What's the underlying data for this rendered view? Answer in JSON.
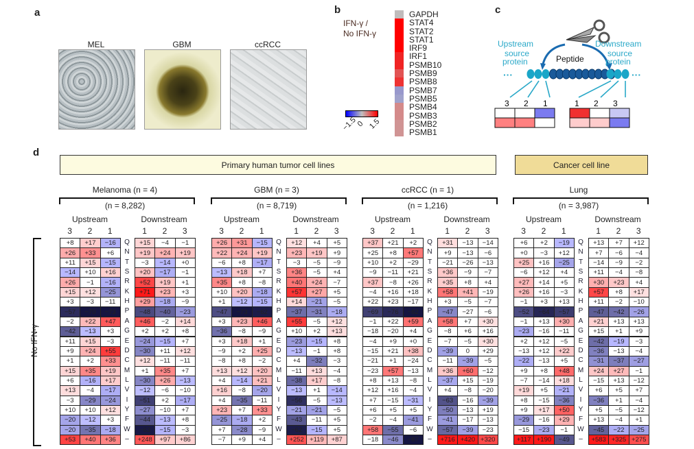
{
  "panel_a": {
    "label": "a",
    "images": [
      {
        "label": "MEL"
      },
      {
        "label": "GBM"
      },
      {
        "label": "ccRCC"
      }
    ]
  },
  "panel_b": {
    "label": "b",
    "legend_title_1": "IFN-γ /",
    "legend_title_2": "No IFN-γ",
    "colorbar_ticks": [
      "−1.5",
      "0",
      "1.5"
    ],
    "genes": [
      {
        "name": "GAPDH",
        "color": "#c0bcbc"
      },
      {
        "name": "STAT4",
        "color": "#ff0000"
      },
      {
        "name": "STAT2",
        "color": "#ff0000"
      },
      {
        "name": "STAT1",
        "color": "#ff0000"
      },
      {
        "name": "IRF9",
        "color": "#ff0000"
      },
      {
        "name": "IRF1",
        "color": "#f02424"
      },
      {
        "name": "PSMB10",
        "color": "#f02424"
      },
      {
        "name": "PSMB9",
        "color": "#e25454"
      },
      {
        "name": "PSMB8",
        "color": "#ee3333"
      },
      {
        "name": "PSMB7",
        "color": "#9898cc"
      },
      {
        "name": "PSMB5",
        "color": "#a0a2cc"
      },
      {
        "name": "PSMB4",
        "color": "#d48a8a"
      },
      {
        "name": "PSMB3",
        "color": "#d48a8a"
      },
      {
        "name": "PSMB2",
        "color": "#d09494"
      },
      {
        "name": "PSMB1",
        "color": "#d09494"
      }
    ]
  },
  "panel_c": {
    "label": "c",
    "upstream": "Upstream",
    "downstream": "Downstream",
    "source": "source",
    "protein": "protein",
    "peptide": "Peptide",
    "up_positions": [
      "3",
      "2",
      "1"
    ],
    "down_positions": [
      "1",
      "2",
      "3"
    ],
    "accent": "#29a8c8"
  },
  "panel_d": {
    "label": "d",
    "group_primary": "Primary human tumor cell lines",
    "group_cancer": "Cancer cell line",
    "side_label": "No IFN-γ",
    "upstream_label": "Upstream",
    "downstream_label": "Downstream",
    "up_cols": [
      "3",
      "2",
      "1"
    ],
    "down_cols": [
      "1",
      "2",
      "3"
    ],
    "residues": [
      "Q",
      "N",
      "T",
      "S",
      "R",
      "K",
      "H",
      "P",
      "A",
      "G",
      "E",
      "D",
      "C",
      "M",
      "L",
      "V",
      "I",
      "Y",
      "F",
      "W",
      "–"
    ],
    "colors": {
      "positive": "#ff2020",
      "negative": "#2222ee"
    },
    "panels": [
      {
        "title": "Melanoma (n = 4)",
        "count": "(n = 8,282)",
        "up": [
          [
            "+8",
            "+17",
            "−16"
          ],
          [
            "+26",
            "+33",
            "+6"
          ],
          [
            "+11",
            "+15",
            "−15"
          ],
          [
            "−14",
            "+10",
            "+16"
          ],
          [
            "+26",
            "−1",
            "−16"
          ],
          [
            "+15",
            "+12",
            "−25"
          ],
          [
            "+3",
            "−3",
            "−11"
          ],
          [
            "−57",
            "−70",
            "−73"
          ],
          [
            "−2",
            "+22",
            "+47"
          ],
          [
            "−42",
            "−13",
            "+3"
          ],
          [
            "+11",
            "+15",
            "−3"
          ],
          [
            "+9",
            "+24",
            "+55"
          ],
          [
            "+1",
            "+2",
            "+33"
          ],
          [
            "+15",
            "+35",
            "+19"
          ],
          [
            "+6",
            "−16",
            "+17"
          ],
          [
            "+13",
            "−4",
            "−17"
          ],
          [
            "−3",
            "−29",
            "−24"
          ],
          [
            "+10",
            "+10",
            "+12"
          ],
          [
            "−20",
            "−12",
            "+3"
          ],
          [
            "−20",
            "−35",
            "−18"
          ],
          [
            "+53",
            "+40",
            "+36"
          ]
        ],
        "down": [
          [
            "+15",
            "−4",
            "−1"
          ],
          [
            "+19",
            "+24",
            "+19"
          ],
          [
            "−3",
            "−14",
            "+0"
          ],
          [
            "+20",
            "−17",
            "−1"
          ],
          [
            "+52",
            "+19",
            "+1"
          ],
          [
            "+71",
            "+23",
            "+3"
          ],
          [
            "+29",
            "−18",
            "−9"
          ],
          [
            "−48",
            "−40",
            "−23"
          ],
          [
            "+46",
            "−2",
            "+14"
          ],
          [
            "+2",
            "+2",
            "+8"
          ],
          [
            "−24",
            "−15",
            "+7"
          ],
          [
            "−30",
            "+11",
            "+12"
          ],
          [
            "+12",
            "−11",
            "−11"
          ],
          [
            "+1",
            "+35",
            "+7"
          ],
          [
            "−30",
            "+26",
            "−13"
          ],
          [
            "−12",
            "−6",
            "−10"
          ],
          [
            "−51",
            "+2",
            "−17"
          ],
          [
            "−27",
            "−10",
            "+7"
          ],
          [
            "−44",
            "−13",
            "+8"
          ],
          [
            "−63",
            "−15",
            "−3"
          ],
          [
            "+248",
            "+97",
            "+86"
          ]
        ]
      },
      {
        "title": "GBM (n = 3)",
        "count": "(n = 8,719)",
        "up": [
          [
            "+26",
            "+31",
            "−15"
          ],
          [
            "+22",
            "+24",
            "+19"
          ],
          [
            "−6",
            "+8",
            "−17"
          ],
          [
            "−13",
            "+18",
            "+7"
          ],
          [
            "+35",
            "+8",
            "−8"
          ],
          [
            "+10",
            "+20",
            "−18"
          ],
          [
            "+1",
            "−12",
            "−15"
          ],
          [
            "−47",
            "−73",
            "−62"
          ],
          [
            "+3",
            "+23",
            "+46"
          ],
          [
            "−36",
            "−8",
            "−9"
          ],
          [
            "+3",
            "+18",
            "+1"
          ],
          [
            "−9",
            "+2",
            "+25"
          ],
          [
            "−8",
            "+8",
            "−2"
          ],
          [
            "+13",
            "+12",
            "+20"
          ],
          [
            "+4",
            "−14",
            "+21"
          ],
          [
            "+16",
            "−8",
            "−20"
          ],
          [
            "+4",
            "−35",
            "−11"
          ],
          [
            "+23",
            "+7",
            "+33"
          ],
          [
            "−25",
            "−18",
            "+2"
          ],
          [
            "+7",
            "−28",
            "−9"
          ],
          [
            "−7",
            "+9",
            "+4"
          ]
        ],
        "down": [
          [
            "+12",
            "+4",
            "+5"
          ],
          [
            "+23",
            "+19",
            "+9"
          ],
          [
            "−3",
            "−5",
            "−9"
          ],
          [
            "+36",
            "−5",
            "+4"
          ],
          [
            "+40",
            "+24",
            "−7"
          ],
          [
            "+57",
            "+27",
            "+5"
          ],
          [
            "+14",
            "−21",
            "−5"
          ],
          [
            "−37",
            "−31",
            "−18"
          ],
          [
            "+55",
            "−5",
            "+12"
          ],
          [
            "+10",
            "+2",
            "+13"
          ],
          [
            "−23",
            "−15",
            "+8"
          ],
          [
            "−13",
            "−1",
            "+8"
          ],
          [
            "+4",
            "−32",
            "−3"
          ],
          [
            "−11",
            "+13",
            "−4"
          ],
          [
            "−38",
            "+17",
            "−8"
          ],
          [
            "−13",
            "+1",
            "−14"
          ],
          [
            "−56",
            "−5",
            "−13"
          ],
          [
            "−21",
            "−21",
            "−5"
          ],
          [
            "−43",
            "−11",
            "+5"
          ],
          [
            "−62",
            "−15",
            "+5"
          ],
          [
            "+252",
            "+119",
            "+87"
          ]
        ]
      },
      {
        "title": "ccRCC (n = 1)",
        "count": "(n = 1,216)",
        "up": [
          [
            "+37",
            "+21",
            "+2"
          ],
          [
            "+25",
            "+8",
            "+57"
          ],
          [
            "+10",
            "+2",
            "−29"
          ],
          [
            "−9",
            "−11",
            "+21"
          ],
          [
            "+37",
            "−8",
            "+26"
          ],
          [
            "−4",
            "+16",
            "+18"
          ],
          [
            "+22",
            "+23",
            "−17"
          ],
          [
            "−69",
            "−76",
            "−82"
          ],
          [
            "−1",
            "+22",
            "+59"
          ],
          [
            "−18",
            "−20",
            "+4"
          ],
          [
            "−4",
            "+9",
            "+0"
          ],
          [
            "−15",
            "+21",
            "+38"
          ],
          [
            "−21",
            "+1",
            "−24"
          ],
          [
            "−23",
            "+57",
            "−13"
          ],
          [
            "+8",
            "+13",
            "−8"
          ],
          [
            "+12",
            "+16",
            "−4"
          ],
          [
            "+7",
            "−15",
            "−31"
          ],
          [
            "+6",
            "+5",
            "+5"
          ],
          [
            "−2",
            "−4",
            "−41"
          ],
          [
            "+58",
            "−55",
            "−6"
          ],
          [
            "−18",
            "−46",
            "−87"
          ]
        ],
        "down": [
          [
            "+31",
            "−13",
            "−14"
          ],
          [
            "+9",
            "−13",
            "−6"
          ],
          [
            "−21",
            "−26",
            "−13"
          ],
          [
            "+36",
            "−9",
            "−7"
          ],
          [
            "+35",
            "+8",
            "+4"
          ],
          [
            "+58",
            "+41",
            "−19"
          ],
          [
            "+3",
            "−5",
            "−7"
          ],
          [
            "−47",
            "−27",
            "−6"
          ],
          [
            "+58",
            "+7",
            "+30"
          ],
          [
            "−8",
            "+6",
            "+16"
          ],
          [
            "−7",
            "−5",
            "+30"
          ],
          [
            "−39",
            "0",
            "+29"
          ],
          [
            "−11",
            "−39",
            "−5"
          ],
          [
            "+36",
            "+60",
            "−12"
          ],
          [
            "−37",
            "+15",
            "−19"
          ],
          [
            "+4",
            "−8",
            "−20"
          ],
          [
            "−63",
            "−16",
            "−39"
          ],
          [
            "−50",
            "−13",
            "+19"
          ],
          [
            "−41",
            "−17",
            "−13"
          ],
          [
            "−57",
            "−39",
            "−23"
          ],
          [
            "+716",
            "+420",
            "+320"
          ]
        ]
      },
      {
        "title": "Lung",
        "count": "(n = 3,987)",
        "up": [
          [
            "+6",
            "+2",
            "−19"
          ],
          [
            "+0",
            "−3",
            "+12"
          ],
          [
            "+25",
            "+16",
            "−25"
          ],
          [
            "−6",
            "+12",
            "+4"
          ],
          [
            "+27",
            "+14",
            "+5"
          ],
          [
            "+26",
            "+16",
            "−3"
          ],
          [
            "−1",
            "+3",
            "+13"
          ],
          [
            "−52",
            "−64",
            "−57"
          ],
          [
            "−1",
            "+13",
            "+30"
          ],
          [
            "−23",
            "−16",
            "−11"
          ],
          [
            "+2",
            "+12",
            "−5"
          ],
          [
            "−13",
            "+12",
            "+22"
          ],
          [
            "−22",
            "−13",
            "+5"
          ],
          [
            "+9",
            "+8",
            "+48"
          ],
          [
            "−7",
            "−14",
            "+18"
          ],
          [
            "+19",
            "+5",
            "−21"
          ],
          [
            "+8",
            "−15",
            "−36"
          ],
          [
            "+9",
            "+17",
            "+50"
          ],
          [
            "−29",
            "−16",
            "+29"
          ],
          [
            "−15",
            "−23",
            "−1"
          ],
          [
            "+117",
            "+190",
            "−49"
          ]
        ],
        "down": [
          [
            "+13",
            "+7",
            "+12"
          ],
          [
            "+7",
            "−6",
            "−4"
          ],
          [
            "−14",
            "−9",
            "−2"
          ],
          [
            "+11",
            "−4",
            "−8"
          ],
          [
            "+30",
            "+23",
            "+4"
          ],
          [
            "+57",
            "+8",
            "+17"
          ],
          [
            "+11",
            "−2",
            "−10"
          ],
          [
            "−47",
            "−42",
            "−26"
          ],
          [
            "+21",
            "+13",
            "+13"
          ],
          [
            "+15",
            "+1",
            "+9"
          ],
          [
            "−42",
            "−19",
            "−3"
          ],
          [
            "−36",
            "−13",
            "−4"
          ],
          [
            "−31",
            "−37",
            "−27"
          ],
          [
            "+24",
            "+27",
            "−1"
          ],
          [
            "−15",
            "+13",
            "−12"
          ],
          [
            "+6",
            "+5",
            "+7"
          ],
          [
            "−36",
            "+1",
            "−4"
          ],
          [
            "+5",
            "−5",
            "−12"
          ],
          [
            "+13",
            "−4",
            "+1"
          ],
          [
            "−45",
            "−22",
            "−25"
          ],
          [
            "+583",
            "+325",
            "+275"
          ]
        ]
      }
    ]
  }
}
